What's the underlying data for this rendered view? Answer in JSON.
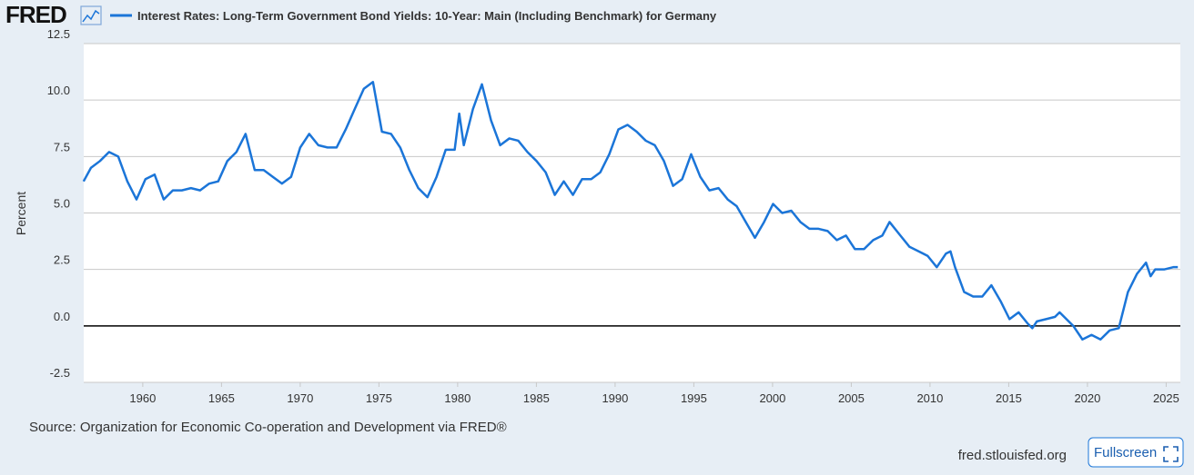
{
  "header": {
    "logo": "FRED"
  },
  "chart_data": {
    "type": "line",
    "ylabel": "Percent",
    "x": [
      1956.24,
      1956.71,
      1957.28,
      1957.86,
      1958.44,
      1959.02,
      1959.6,
      1960.17,
      1960.75,
      1961.33,
      1961.91,
      1962.48,
      1963.06,
      1963.64,
      1964.22,
      1964.79,
      1965.37,
      1965.95,
      1966.53,
      1967.11,
      1967.68,
      1968.26,
      1968.84,
      1969.42,
      1970.0,
      1970.57,
      1971.15,
      1971.73,
      1972.31,
      1972.89,
      1973.46,
      1974.04,
      1974.62,
      1975.19,
      1975.77,
      1976.35,
      1976.93,
      1977.5,
      1978.08,
      1978.66,
      1979.24,
      1979.81,
      1980.1,
      1980.39,
      1980.97,
      1981.54,
      1982.12,
      1982.7,
      1983.28,
      1983.85,
      1984.43,
      1985.01,
      1985.59,
      1986.17,
      1986.74,
      1987.32,
      1987.9,
      1988.48,
      1989.06,
      1989.63,
      1990.21,
      1990.79,
      1991.37,
      1991.95,
      1992.52,
      1993.1,
      1993.68,
      1994.26,
      1994.83,
      1995.41,
      1995.99,
      1996.57,
      1997.15,
      1997.72,
      1998.3,
      1998.88,
      1999.46,
      2000.03,
      2000.61,
      2001.19,
      2001.77,
      2002.34,
      2002.92,
      2003.5,
      2004.08,
      2004.66,
      2005.23,
      2005.81,
      2006.39,
      2006.97,
      2007.43,
      2008.12,
      2008.7,
      2009.28,
      2009.85,
      2010.43,
      2011.01,
      2011.3,
      2011.59,
      2012.17,
      2012.74,
      2013.32,
      2013.9,
      2014.48,
      2015.05,
      2015.63,
      2016.21,
      2016.5,
      2016.79,
      2017.37,
      2017.94,
      2018.23,
      2018.52,
      2019.1,
      2019.68,
      2020.26,
      2020.83,
      2021.41,
      2021.99,
      2022.57,
      2023.14,
      2023.72,
      2024.01,
      2024.3,
      2024.87,
      2025.45,
      2025.74
    ],
    "series": [
      {
        "name": "Interest Rates: Long-Term Government Bond Yields: 10-Year: Main (Including Benchmark) for Germany",
        "color": "#1b75d8",
        "values": [
          6.4,
          7.0,
          7.3,
          7.7,
          7.5,
          6.4,
          5.6,
          6.5,
          6.7,
          5.6,
          6.0,
          6.0,
          6.1,
          6.0,
          6.3,
          6.4,
          7.3,
          7.7,
          8.5,
          6.9,
          6.9,
          6.6,
          6.3,
          6.6,
          7.9,
          8.5,
          8.0,
          7.9,
          7.9,
          8.7,
          9.6,
          10.5,
          10.8,
          8.6,
          8.5,
          7.9,
          6.9,
          6.1,
          5.7,
          6.6,
          7.8,
          7.8,
          9.4,
          8.0,
          9.6,
          10.7,
          9.1,
          8.0,
          8.3,
          8.2,
          7.7,
          7.3,
          6.8,
          5.8,
          6.4,
          5.8,
          6.5,
          6.5,
          6.8,
          7.6,
          8.7,
          8.9,
          8.6,
          8.2,
          8.0,
          7.3,
          6.2,
          6.5,
          7.6,
          6.6,
          6.0,
          6.1,
          5.6,
          5.3,
          4.6,
          3.9,
          4.6,
          5.4,
          5.0,
          5.1,
          4.6,
          4.3,
          4.3,
          4.2,
          3.8,
          4.0,
          3.4,
          3.4,
          3.8,
          4.0,
          4.6,
          4.0,
          3.5,
          3.3,
          3.1,
          2.6,
          3.2,
          3.3,
          2.6,
          1.5,
          1.3,
          1.3,
          1.8,
          1.1,
          0.3,
          0.6,
          0.1,
          -0.1,
          0.2,
          0.3,
          0.4,
          0.6,
          0.4,
          0.0,
          -0.6,
          -0.4,
          -0.6,
          -0.2,
          -0.1,
          1.5,
          2.3,
          2.8,
          2.2,
          2.5,
          2.5,
          2.6,
          2.6
        ]
      }
    ],
    "xlim": [
      1956.25,
      2025.9
    ],
    "ylim": [
      -2.5,
      12.5
    ],
    "xticks": [
      1960,
      1965,
      1970,
      1975,
      1980,
      1985,
      1990,
      1995,
      2000,
      2005,
      2010,
      2015,
      2020,
      2025
    ],
    "yticks": [
      -2.5,
      {
        "value": 0,
        "label": "0.0"
      },
      2.5,
      {
        "value": 5,
        "label": "5.0"
      },
      7.5,
      {
        "value": 10,
        "label": "10.0"
      },
      12.5
    ],
    "grid": true
  },
  "footer": {
    "source": "Source: Organization for Economic Co-operation and Development via FRED®",
    "site": "fred.stlouisfed.org",
    "button": "Fullscreen"
  }
}
